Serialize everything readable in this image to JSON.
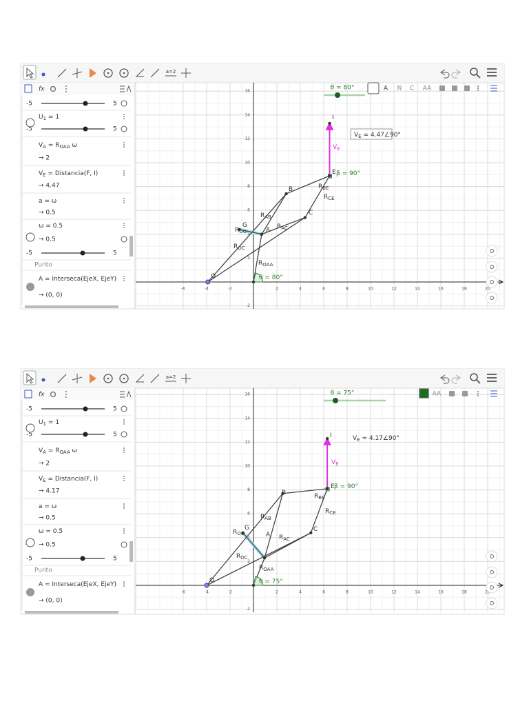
{
  "toolbar": {
    "slider_tool": "a=2",
    "fx": "fx"
  },
  "axes": {
    "xticks": [
      -6,
      -4,
      -2,
      2,
      4,
      6,
      8,
      10,
      12,
      14,
      16,
      18,
      20
    ],
    "yticks": [
      -2,
      2,
      4,
      6,
      8,
      10,
      12,
      14,
      16
    ]
  },
  "panels": [
    {
      "algebra": {
        "rows": [
          {
            "min": "-5",
            "max": "5"
          },
          {
            "def": [
              "U",
              "1",
              " = 1"
            ],
            "min": "-5",
            "max": "5"
          },
          {
            "def": [
              "V",
              "A",
              " = R",
              "OAA",
              " ω"
            ],
            "out": "→ 2"
          },
          {
            "def": [
              "V",
              "E",
              " = Distancia(F, I)"
            ],
            "out": "→ 4.47"
          },
          {
            "def": [
              "a = ω"
            ],
            "out": "→ 0.5"
          },
          {
            "def": [
              "ω = 0.5"
            ],
            "out": "→ 0.5",
            "min": "-5",
            "max": "5"
          },
          {
            "section": "Punto"
          },
          {
            "def": [
              "A = Interseca(EjeX, EjeY)"
            ],
            "out": "→ (0, 0)"
          }
        ]
      },
      "graphics": {
        "slider": "θ = 80°",
        "style": [
          "A",
          "N",
          "C",
          "AA"
        ],
        "info": [
          "V",
          "E",
          " = 4.47∠90°"
        ],
        "labels": [
          [
            "I"
          ],
          [
            "E"
          ],
          [
            "B"
          ],
          [
            "C"
          ],
          [
            "A"
          ],
          [
            "G"
          ],
          [
            "O"
          ],
          [
            "R",
            "BE"
          ],
          [
            "R",
            "CE"
          ],
          [
            "R",
            "AB"
          ],
          [
            "R",
            "AC"
          ],
          [
            "R",
            "OG"
          ],
          [
            "R",
            "OC"
          ],
          [
            "R",
            "OAA"
          ],
          [
            "V",
            "E"
          ],
          [
            "β = 90°"
          ],
          [
            "θ = 80°"
          ]
        ]
      }
    },
    {
      "algebra": {
        "rows": [
          {
            "min": "-5",
            "max": "5"
          },
          {
            "def": [
              "U",
              "1",
              " = 1"
            ],
            "min": "-5",
            "max": "5"
          },
          {
            "def": [
              "V",
              "A",
              " = R",
              "OAA",
              " ω"
            ],
            "out": "→ 2"
          },
          {
            "def": [
              "V",
              "E",
              " = Distancia(F, I)"
            ],
            "out": "→ 4.17"
          },
          {
            "def": [
              "a = ω"
            ],
            "out": "→ 0.5"
          },
          {
            "def": [
              "ω = 0.5"
            ],
            "out": "→ 0.5",
            "min": "-5",
            "max": "5"
          },
          {
            "section": "Punto"
          },
          {
            "def": [
              "A = Interseca(EjeX, EjeY)"
            ],
            "out": "→ (0, 0)"
          }
        ]
      },
      "graphics": {
        "slider": "θ = 75°",
        "style": [
          "AA"
        ],
        "info": [
          "V",
          "E",
          " = 4.17∠90°"
        ],
        "labels": [
          [
            "I"
          ],
          [
            "E"
          ],
          [
            "B"
          ],
          [
            "C"
          ],
          [
            "A"
          ],
          [
            "G"
          ],
          [
            "O"
          ],
          [
            "R",
            "BE"
          ],
          [
            "R",
            "CE"
          ],
          [
            "R",
            "AB"
          ],
          [
            "R",
            "AC"
          ],
          [
            "R",
            "OG"
          ],
          [
            "R",
            "OC"
          ],
          [
            "R",
            "OAA"
          ],
          [
            "V",
            "E"
          ],
          [
            "β = 90°"
          ],
          [
            "θ = 75°"
          ]
        ]
      }
    }
  ]
}
